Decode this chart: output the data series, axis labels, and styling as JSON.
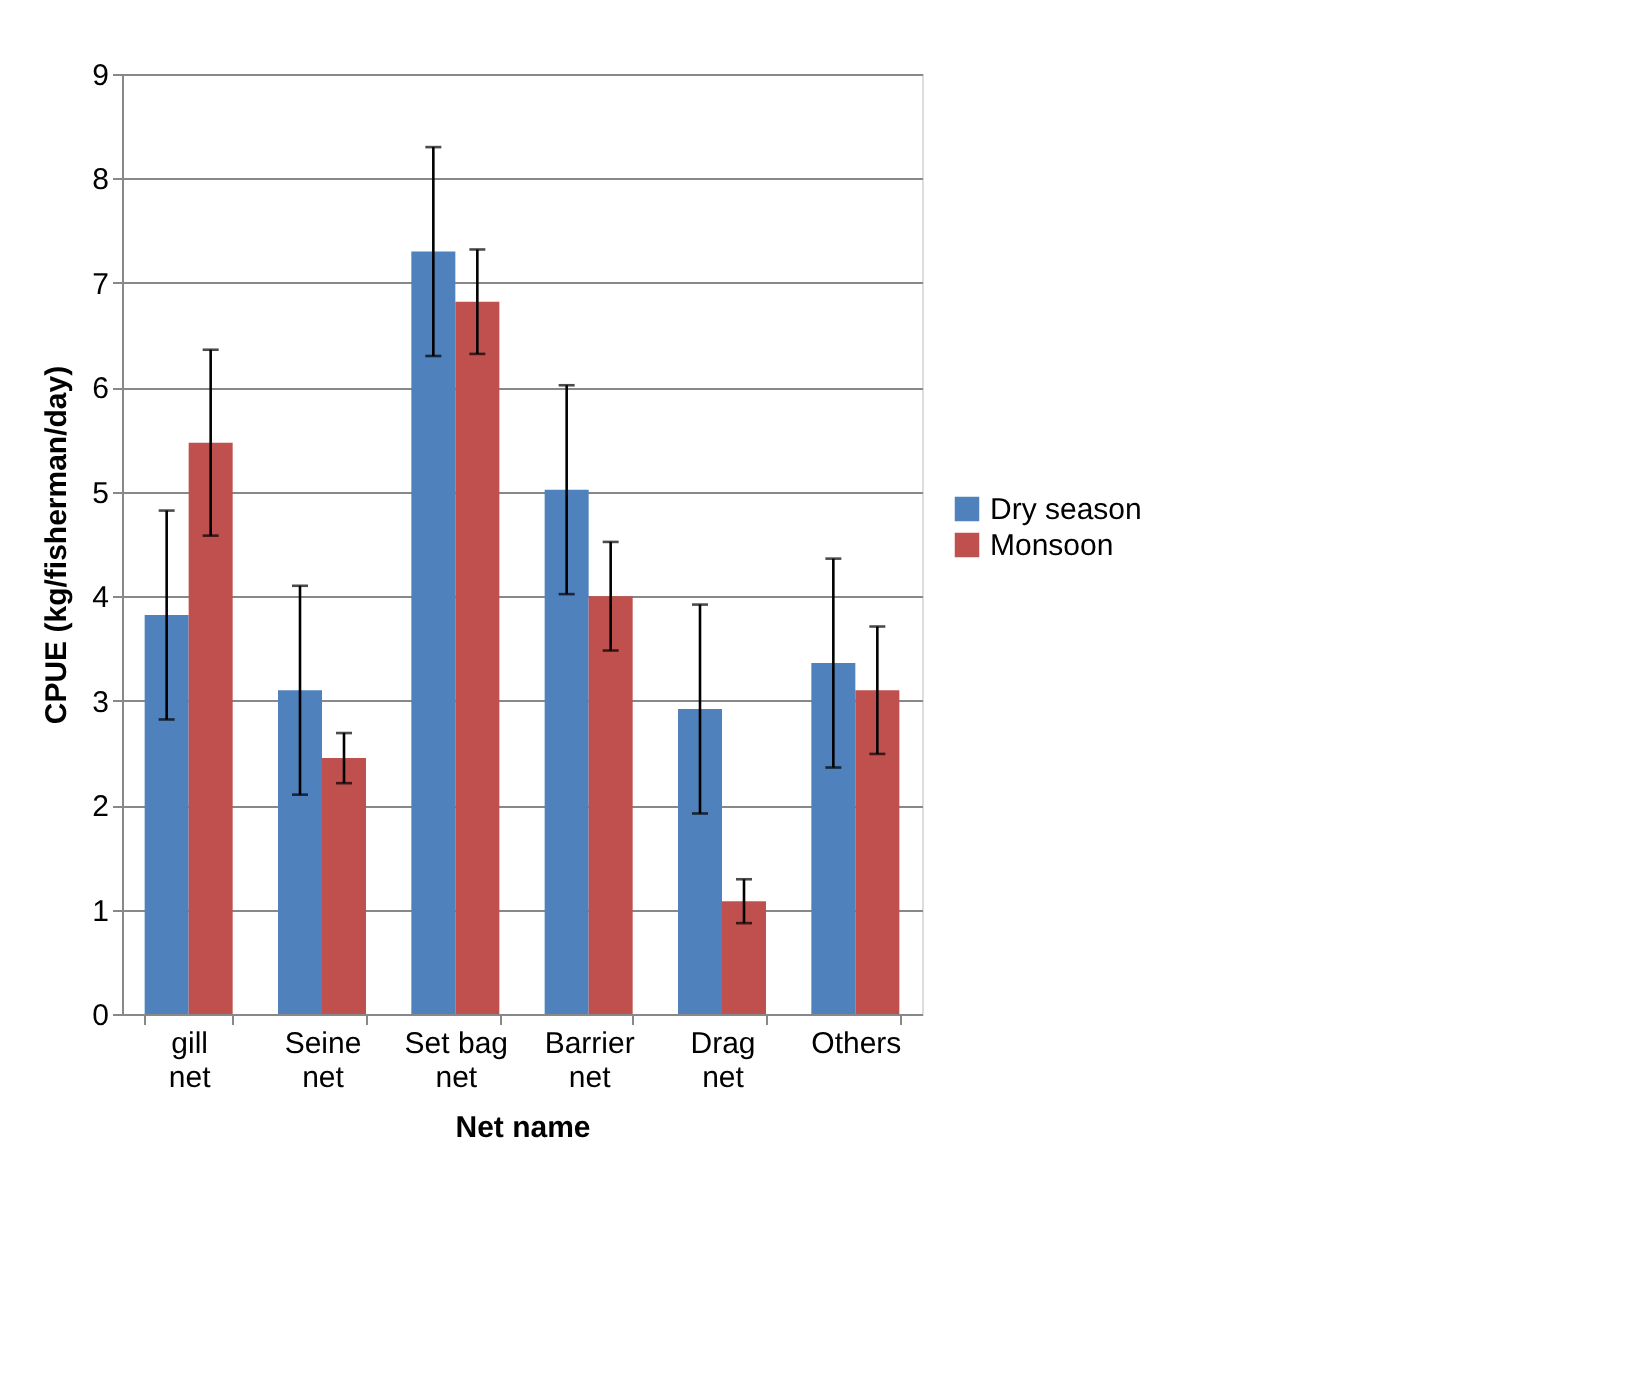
{
  "chart_data": {
    "type": "bar",
    "xlabel": "Net name",
    "ylabel": "CPUE (kg/fisherman/day)",
    "categories": [
      "gill net",
      "Seine net",
      "Set bag net",
      "Barrier net",
      "Drag net",
      "Others"
    ],
    "series": [
      {
        "name": "Dry season",
        "color": "#4f81bd",
        "values": [
          3.82,
          3.1,
          7.3,
          5.02,
          2.92,
          3.36
        ],
        "errors": [
          1.0,
          1.0,
          1.0,
          1.0,
          1.0,
          1.0
        ]
      },
      {
        "name": "Monsoon",
        "color": "#c0504d",
        "values": [
          5.47,
          2.45,
          6.82,
          4.0,
          1.08,
          3.1
        ],
        "errors": [
          0.89,
          0.24,
          0.5,
          0.52,
          0.21,
          0.61
        ]
      }
    ],
    "ylim": [
      0,
      9
    ],
    "yticks": [
      0,
      1,
      2,
      3,
      4,
      5,
      6,
      7,
      8,
      9
    ],
    "grid": "y",
    "legend": "right"
  }
}
